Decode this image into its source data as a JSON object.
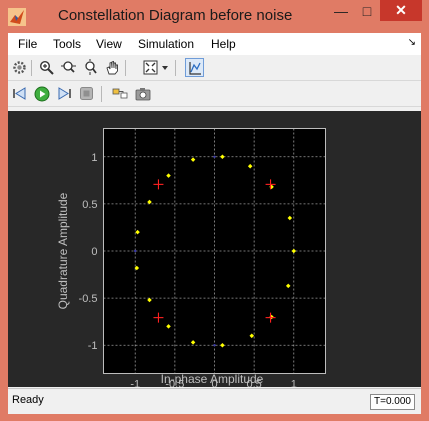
{
  "window": {
    "title": "Constellation Diagram before noise",
    "controls": {
      "minimize": "—",
      "maximize": "□",
      "close": "✕"
    }
  },
  "menu": {
    "items": [
      "File",
      "Tools",
      "View",
      "Simulation",
      "Help"
    ],
    "dock_glyph": "↘"
  },
  "toolbar1": [
    "gear-icon",
    "zoom-in-icon",
    "zoom-x-icon",
    "zoom-y-icon",
    "pan-hand-icon",
    "autoscale-icon",
    "dropdown-arrow-icon",
    "data-cursor-icon"
  ],
  "toolbar2": [
    "step-back-icon",
    "run-icon",
    "step-forward-icon",
    "stop-icon",
    "highlight-block-icon",
    "snapshot-icon"
  ],
  "chart_data": {
    "type": "scatter",
    "xlabel": "In-phase Amplitude",
    "ylabel": "Quadrature Amplitude",
    "xlim": [
      -1.4,
      1.4
    ],
    "ylim": [
      -1.3,
      1.3
    ],
    "xticks": [
      -1,
      -0.5,
      0,
      0.5,
      1
    ],
    "xtick_labels": [
      "-1",
      "-0.5",
      "0",
      "0.5",
      "1"
    ],
    "yticks": [
      -1,
      -0.5,
      0,
      0.5,
      1
    ],
    "ytick_labels": [
      "-1",
      "-0.5",
      "0",
      "0.5",
      "1"
    ],
    "grid": true,
    "series": [
      {
        "marker": "dot",
        "color": "#ffff00",
        "points": [
          [
            1.0,
            0.0
          ],
          [
            0.95,
            0.35
          ],
          [
            0.72,
            0.68
          ],
          [
            0.45,
            0.9
          ],
          [
            0.1,
            1.0
          ],
          [
            -0.27,
            0.97
          ],
          [
            -0.58,
            0.8
          ],
          [
            -0.82,
            0.52
          ],
          [
            -0.97,
            0.2
          ],
          [
            -0.98,
            -0.18
          ],
          [
            -0.82,
            -0.52
          ],
          [
            -0.58,
            -0.8
          ],
          [
            -0.27,
            -0.97
          ],
          [
            0.1,
            -1.0
          ],
          [
            0.47,
            -0.9
          ],
          [
            0.72,
            -0.7
          ],
          [
            0.93,
            -0.37
          ]
        ]
      },
      {
        "marker": "plus",
        "color": "#ff2020",
        "points": [
          [
            0.707,
            0.707
          ],
          [
            -0.707,
            0.707
          ],
          [
            -0.707,
            -0.707
          ],
          [
            0.707,
            -0.707
          ]
        ]
      }
    ]
  },
  "status": {
    "text": "Ready",
    "time": "T=0.000"
  },
  "colors": {
    "window_frame": "#e07b65",
    "plot_background": "#282828",
    "axes_background": "#000000",
    "signal": "#ffff00",
    "reference": "#ff2020",
    "faint_points": "#3a3aa8"
  }
}
